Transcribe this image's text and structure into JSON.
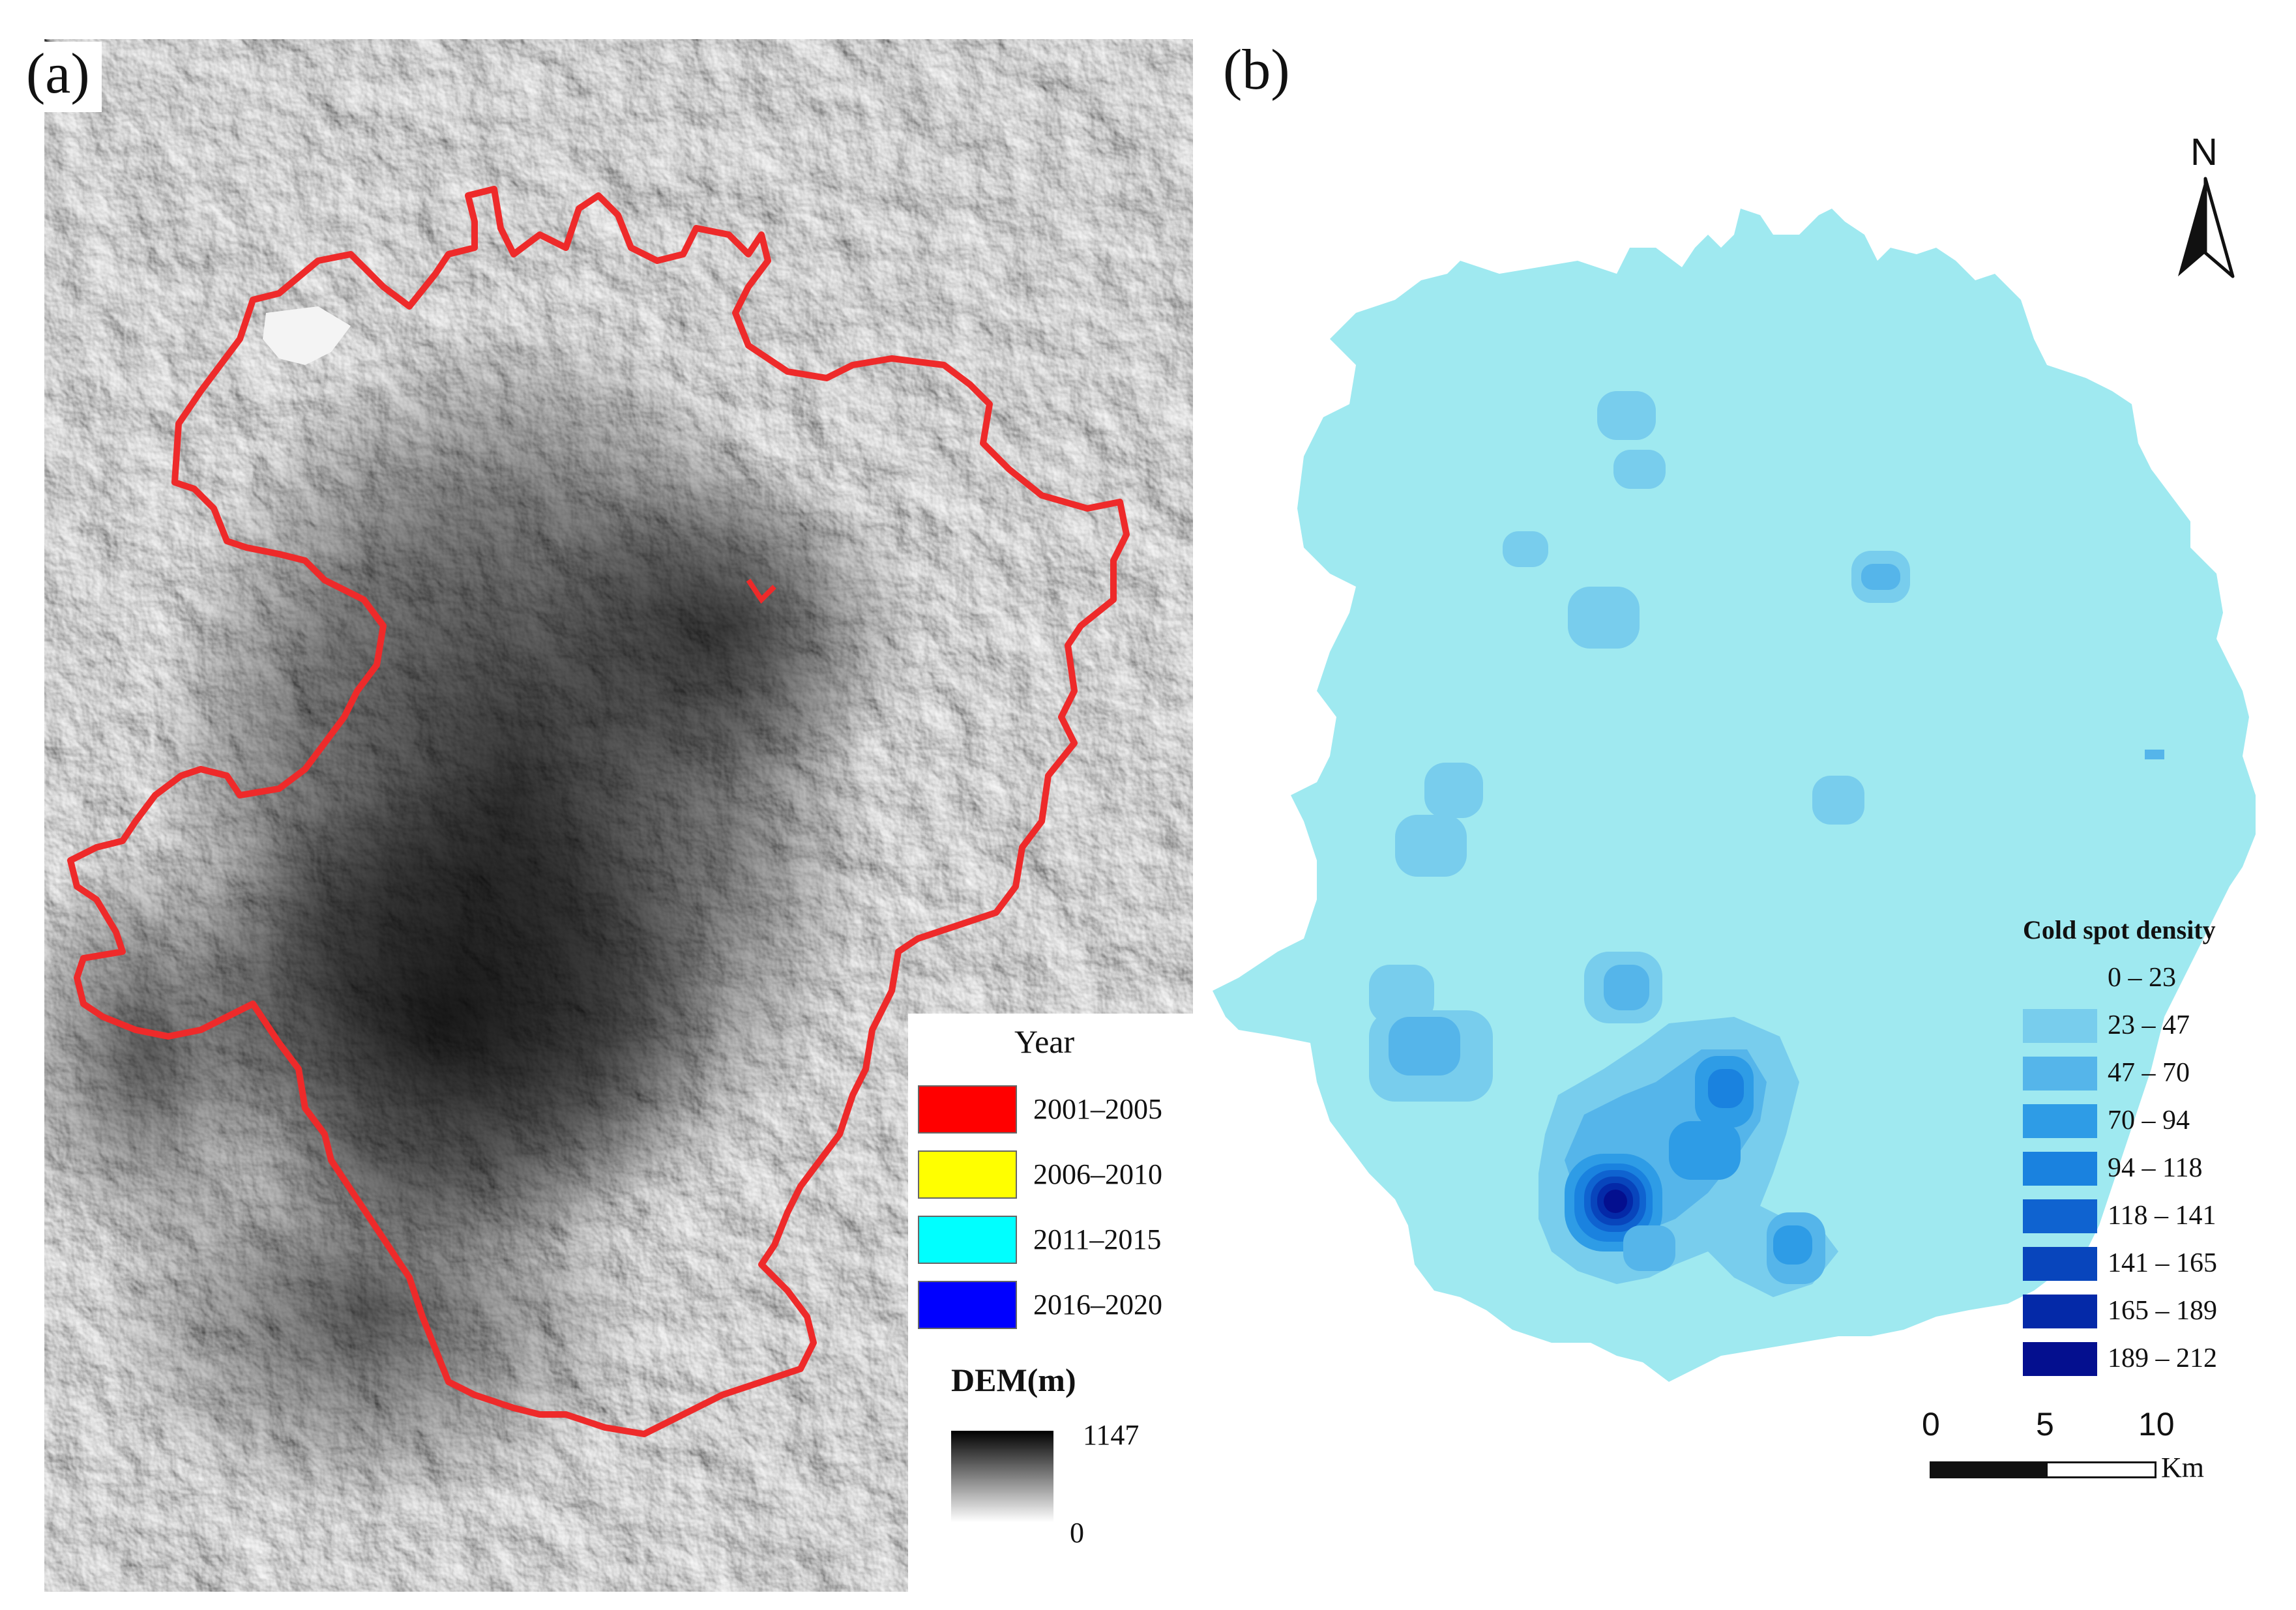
{
  "panel_a": {
    "label": "(a)",
    "year_legend": {
      "title": "Year",
      "items": [
        {
          "label": "2001–2005",
          "color": "#ff0000"
        },
        {
          "label": "2006–2010",
          "color": "#ffff00"
        },
        {
          "label": "2011–2015",
          "color": "#00ffff"
        },
        {
          "label": "2016–2020",
          "color": "#0000ff"
        }
      ]
    },
    "dem_legend": {
      "title": "DEM(m)",
      "max": "1147",
      "min": "0"
    },
    "boundary_color": "#ee2a2a"
  },
  "panel_b": {
    "label": "(b)",
    "north_label": "N",
    "density_legend": {
      "title": "Cold spot density",
      "items": [
        {
          "label": "0 – 23",
          "color": "#9fe9f0"
        },
        {
          "label": "23 – 47",
          "color": "#78cded"
        },
        {
          "label": "47 – 70",
          "color": "#55b5ea"
        },
        {
          "label": "70 – 94",
          "color": "#2e9ce6"
        },
        {
          "label": "94 – 118",
          "color": "#1a82df"
        },
        {
          "label": "118 – 141",
          "color": "#0f63d0"
        },
        {
          "label": "141 – 165",
          "color": "#0845bc"
        },
        {
          "label": "165 – 189",
          "color": "#0429a8"
        },
        {
          "label": "189 – 212",
          "color": "#040f8f"
        }
      ]
    },
    "scale_bar": {
      "ticks": [
        "0",
        "5",
        "10"
      ],
      "unit": "Km"
    }
  }
}
